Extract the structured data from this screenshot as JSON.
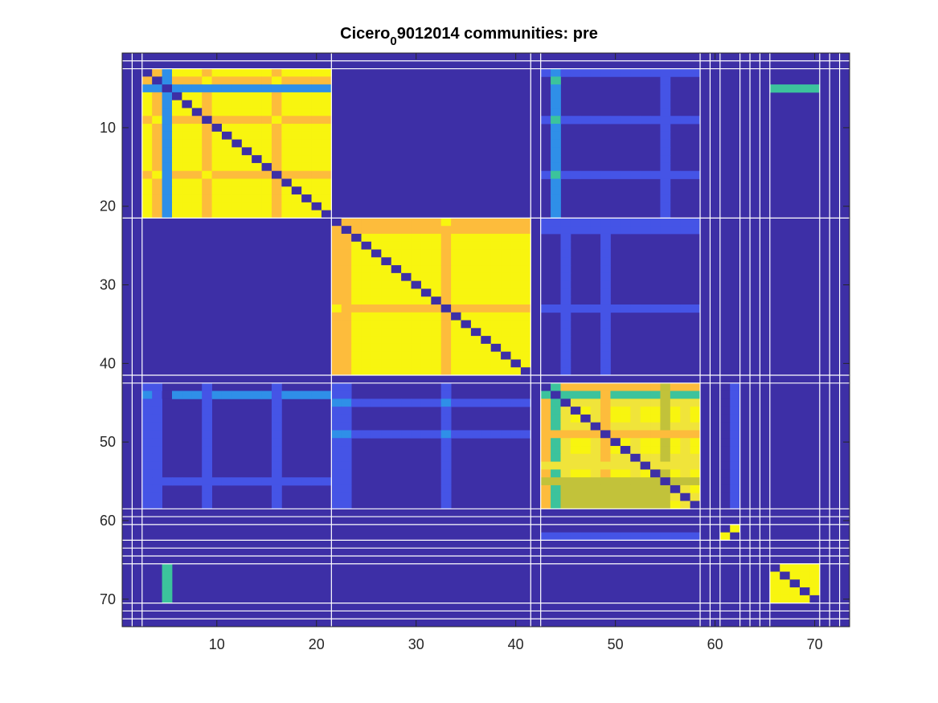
{
  "chart_data": {
    "type": "heatmap",
    "title": {
      "main": "Cicero",
      "subscript": "0",
      "rest": "9012014 communities: pre"
    },
    "xlabel": "",
    "ylabel": "",
    "n": 73,
    "xlim": [
      0.5,
      73.5
    ],
    "ylim": [
      0.5,
      73.5
    ],
    "y_reversed": true,
    "x_ticks": [
      10,
      20,
      30,
      40,
      50,
      60,
      70
    ],
    "y_ticks": [
      10,
      20,
      30,
      40,
      50,
      60,
      70
    ],
    "grid": false,
    "colors": {
      "background": "#3d2fa6",
      "off_diagonal_low": "#4554e6",
      "mid_blue": "#2f8fe8",
      "teal": "#3cc39c",
      "orange": "#fdbc3c",
      "yellow": "#f8f50f",
      "olive": "#c2c23a",
      "light_yellow": "#f0e43a",
      "separator": "#ffffff",
      "axis": "#262626"
    },
    "community_boundaries": [
      1.5,
      2.5,
      21.5,
      41.5,
      42.5,
      58.5,
      59.5,
      60.5,
      62.5,
      63.5,
      64.5,
      65.5,
      70.5,
      71.5,
      72.5
    ],
    "blocks": [
      {
        "name": "community-1",
        "rows": [
          3,
          21
        ],
        "cols": [
          3,
          21
        ],
        "base": "yellow"
      },
      {
        "name": "community-2",
        "rows": [
          22,
          41
        ],
        "cols": [
          22,
          41
        ],
        "base": "yellow"
      },
      {
        "name": "community-3",
        "rows": [
          43,
          58
        ],
        "cols": [
          43,
          58
        ],
        "base": "yellow"
      },
      {
        "name": "community-4",
        "rows": [
          61,
          62
        ],
        "cols": [
          61,
          62
        ],
        "base": "yellow"
      },
      {
        "name": "community-5",
        "rows": [
          66,
          70
        ],
        "cols": [
          66,
          70
        ],
        "base": "yellow"
      }
    ]
  }
}
